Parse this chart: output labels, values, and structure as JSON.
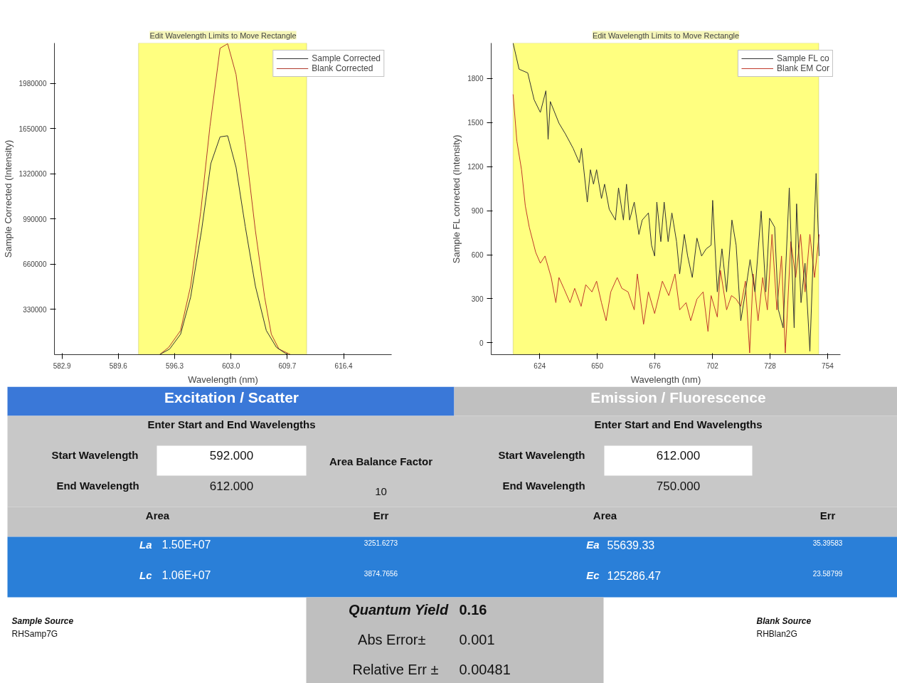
{
  "chart_data": [
    {
      "type": "line",
      "title": "Edit Wavelength Limits to Move Rectangle",
      "xlabel": "Wavelength (nm)",
      "ylabel": "Sample Corrected (Intensity)",
      "xlim": [
        582,
        622.1
      ],
      "ylim": [
        0,
        2275000
      ],
      "xticks": [
        582.9,
        589.6,
        596.3,
        {
          "value": 603,
          "label": "603.0"
        },
        609.7,
        616.4
      ],
      "yticks": [
        330000,
        660000,
        990000,
        1320000,
        1650000,
        1980000
      ],
      "grid": false,
      "legend": "top right",
      "bands": [
        {
          "axis": "x",
          "from": 592,
          "to": 612,
          "color": "#ffff80"
        }
      ],
      "series": [
        {
          "name": "Sample Corrected",
          "color": "#333333",
          "x": [
            582,
            594.5,
            595.7,
            597.0,
            598.2,
            599.5,
            600.6,
            601.7,
            602.6,
            603.6,
            604.7,
            605.9,
            607.2,
            608.4,
            609.7,
            622.1
          ],
          "values": [
            0,
            0,
            41000,
            149000,
            420000,
            907000,
            1395000,
            1590000,
            1598000,
            1368000,
            935000,
            501000,
            176000,
            54000,
            0,
            0
          ]
        },
        {
          "name": "Blank Corrected",
          "color": "#b03a2e",
          "x": [
            594.5,
            595.6,
            597.0,
            598.2,
            599.4,
            600.5,
            601.7,
            602.6,
            603.6,
            604.7,
            605.9,
            607.0,
            607.8,
            608.7,
            610.1
          ],
          "values": [
            0,
            54000,
            176000,
            501000,
            1043000,
            1668000,
            2237000,
            2270000,
            2046000,
            1531000,
            907000,
            420000,
            149000,
            41000,
            0
          ]
        }
      ]
    },
    {
      "type": "line",
      "title": "Edit Wavelength Limits to Move Rectangle",
      "xlabel": "Wavelength (nm)",
      "ylabel": "Sample FL corrected (Intensity)",
      "xlim": [
        602.1,
        759.8
      ],
      "ylim": [
        -80,
        2040
      ],
      "xticks": [
        624,
        650,
        676,
        702,
        728,
        754
      ],
      "yticks": [
        0,
        300,
        600,
        900,
        1200,
        1500,
        1800
      ],
      "grid": false,
      "legend": "top right",
      "bands": [
        {
          "axis": "x",
          "from": 612,
          "to": 750,
          "color": "#ffff80"
        }
      ],
      "series": [
        {
          "name": "Sample FL co",
          "color": "#333333",
          "x": [
            612.0,
            614.7,
            618.6,
            621.5,
            624.3,
            626.8,
            627.8,
            628.8,
            632.7,
            635.6,
            639.1,
            641.9,
            642.9,
            645.5,
            646.9,
            648.3,
            649.7,
            651.9,
            653.3,
            655.4,
            658.2,
            659.6,
            661.8,
            663.2,
            664.6,
            666.7,
            668.8,
            670.3,
            673.1,
            674.5,
            675.9,
            676.9,
            678.7,
            680.2,
            682.0,
            683.7,
            685.8,
            687.2,
            689.3,
            690.8,
            692.9,
            695.0,
            697.1,
            699.2,
            701.4,
            702.1,
            704.2,
            706.3,
            708.4,
            710.8,
            712.7,
            714.8,
            716.9,
            719.0,
            721.2,
            724.0,
            726.1,
            727.8,
            730.1,
            731.8,
            733.9,
            736.7,
            738.9,
            740.0,
            742.0,
            743.8,
            746.0,
            748.8,
            750.2
          ],
          "values": [
            2040,
            1862,
            1837,
            1654,
            1568,
            1715,
            1385,
            1642,
            1495,
            1422,
            1324,
            1226,
            1324,
            958,
            1178,
            1080,
            1178,
            982,
            1080,
            909,
            836,
            1055,
            836,
            1080,
            836,
            958,
            738,
            836,
            884,
            665,
            591,
            958,
            689,
            958,
            689,
            884,
            689,
            469,
            738,
            591,
            445,
            713,
            591,
            640,
            665,
            970,
            347,
            640,
            347,
            836,
            665,
            151,
            347,
            567,
            347,
            897,
            347,
            848,
            787,
            225,
            103,
            1055,
            103,
            946,
            274,
            542,
            -56,
            1153,
            591
          ]
        },
        {
          "name": "Blank EM Cor",
          "color": "#c0392b",
          "x": [
            612.0,
            613.7,
            615.8,
            617.5,
            619.3,
            622.2,
            624.3,
            626.4,
            629.2,
            631.3,
            632.7,
            634.9,
            637.7,
            639.8,
            642.7,
            644.8,
            647.6,
            649.7,
            651.9,
            654.0,
            656.1,
            659.0,
            661.1,
            663.9,
            666.7,
            668.1,
            670.9,
            673.1,
            675.9,
            679.4,
            682.3,
            685.1,
            687.2,
            690.1,
            692.2,
            695.0,
            697.8,
            700.0,
            701.4,
            704.2,
            705.6,
            708.4,
            710.6,
            712.7,
            714.8,
            716.9,
            718.8,
            720.4,
            722.6,
            724.7,
            726.8,
            728.9,
            731.1,
            733.2,
            734.9,
            737.4,
            739.6,
            741.8,
            743.8,
            746.0,
            748.1,
            750.2
          ],
          "values": [
            1691,
            1373,
            1178,
            933,
            787,
            616,
            542,
            591,
            445,
            274,
            445,
            371,
            274,
            371,
            249,
            396,
            347,
            420,
            274,
            151,
            347,
            445,
            371,
            347,
            225,
            469,
            127,
            347,
            200,
            420,
            322,
            469,
            225,
            274,
            151,
            298,
            347,
            78,
            322,
            176,
            494,
            225,
            322,
            298,
            249,
            420,
            -68,
            469,
            151,
            445,
            225,
            738,
            225,
            591,
            -68,
            689,
            445,
            738,
            347,
            738,
            445,
            738
          ]
        }
      ]
    },
    {
      "type": "other",
      "annotations": [
        "Excitation / Scatter",
        "Emission / Fluorescence",
        "Enter Start and End Wavelengths",
        "Enter Start and End Wavelengths",
        "Start Wavelength",
        "592.000",
        "End Wavelength",
        "612.000",
        "Area Balance Factor",
        "10",
        "Start Wavelength",
        "612.000",
        "End Wavelength",
        "750.000",
        "Area",
        "Err",
        "Area",
        "Err",
        "La",
        "1.50E+07",
        "3251.6273",
        "Lc",
        "1.06E+07",
        "3874.7656",
        "Ea",
        "55639.33",
        "35.39583",
        "Ec",
        "125286.47",
        "23.58799",
        "Quantum Yield",
        "0.16",
        "Abs Error±",
        "0.001",
        "Relative Err ±",
        "0.00481",
        "Sample Source",
        "RHSamp7G",
        "Blank Source",
        "RHBlan2G"
      ]
    }
  ]
}
